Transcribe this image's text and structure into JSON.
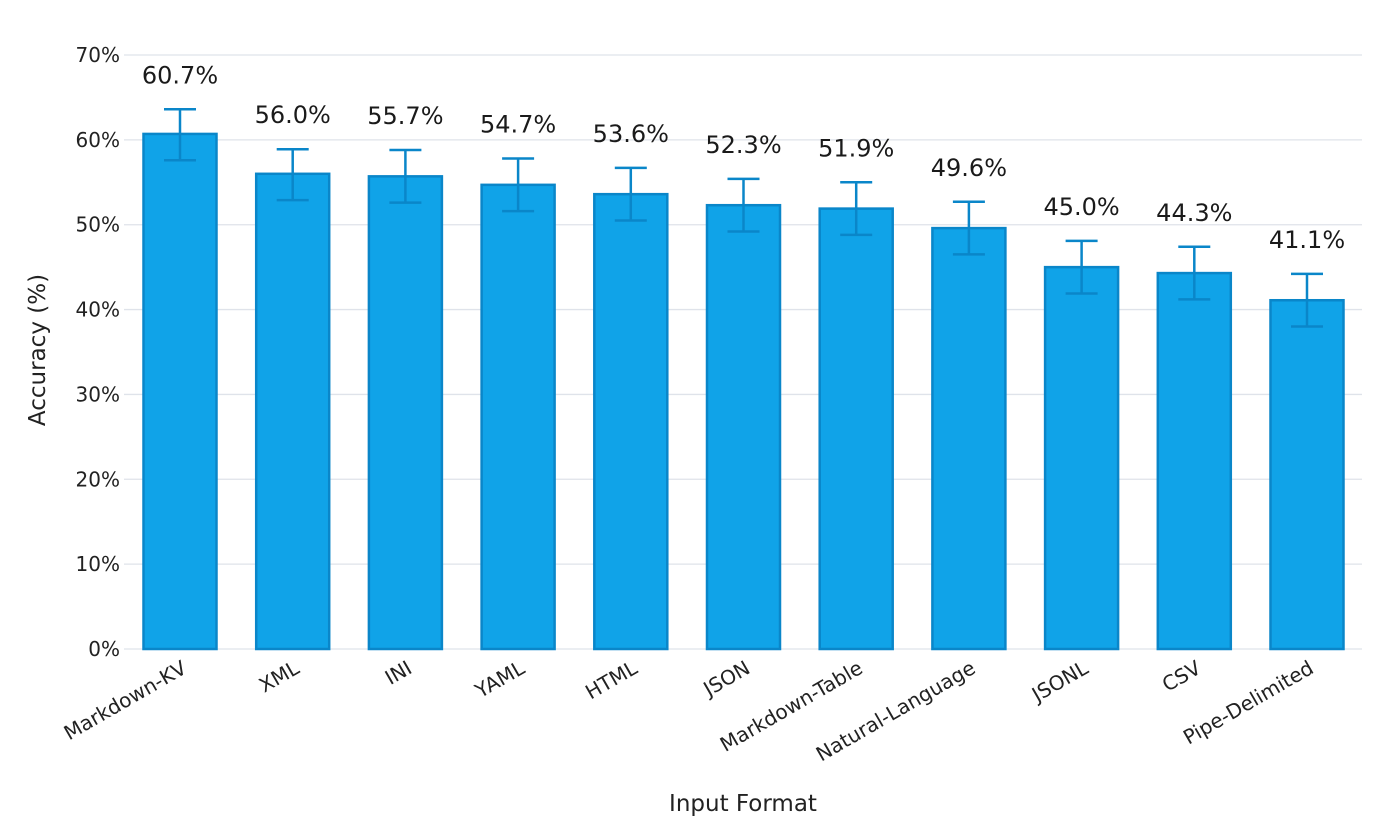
{
  "chart_data": {
    "type": "bar",
    "title": "",
    "xlabel": "Input Format",
    "ylabel": "Accuracy (%)",
    "categories": [
      "Markdown-KV",
      "XML",
      "INI",
      "YAML",
      "HTML",
      "JSON",
      "Markdown-Table",
      "Natural-Language",
      "JSONL",
      "CSV",
      "Pipe-Delimited"
    ],
    "values": [
      60.7,
      56.0,
      55.7,
      54.7,
      53.6,
      52.3,
      51.9,
      49.6,
      45.0,
      44.3,
      41.1
    ],
    "value_labels": [
      "60.7%",
      "56.0%",
      "55.7%",
      "54.7%",
      "53.6%",
      "52.3%",
      "51.9%",
      "49.6%",
      "45.0%",
      "44.3%",
      "41.1%"
    ],
    "error_low": [
      57.6,
      52.9,
      52.6,
      51.6,
      50.5,
      49.2,
      48.8,
      46.5,
      41.9,
      41.2,
      38.0
    ],
    "error_high": [
      63.6,
      58.9,
      58.8,
      57.8,
      56.7,
      55.4,
      55.0,
      52.7,
      48.1,
      47.4,
      44.2
    ],
    "ylim": [
      0,
      70
    ],
    "yticks": [
      0,
      10,
      20,
      30,
      40,
      50,
      60,
      70
    ],
    "ytick_labels": [
      "0%",
      "10%",
      "20%",
      "30%",
      "40%",
      "50%",
      "60%",
      "70%"
    ],
    "grid": true,
    "legend": "none",
    "colors": {
      "bar_fill": "#10a3e8",
      "bar_stroke": "#0a86c9",
      "error_bar": "#0a86c9",
      "grid": "#dfe3ea",
      "text": "#222222"
    }
  }
}
